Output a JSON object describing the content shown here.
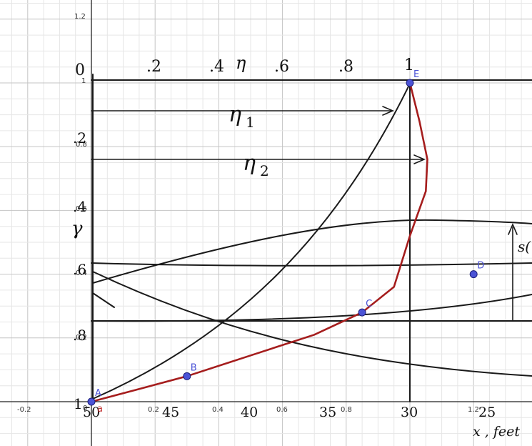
{
  "graph_axes": {
    "x_ticks": [
      "-0.2",
      "0.2",
      "0.4",
      "0.6",
      "0.8",
      "1.2"
    ],
    "y_ticks": [
      "0.2",
      "0.4",
      "0.6",
      "0.8",
      "1",
      "1.2"
    ],
    "origin_label": "0"
  },
  "sketch": {
    "eta_axis_ticks": [
      "0",
      ".2",
      ".4",
      "η",
      ".6",
      ".8",
      "1"
    ],
    "y_axis_ticks": [
      ".2",
      ".4",
      ".6",
      ".8",
      "1"
    ],
    "y_axis_symbol": "γ",
    "bottom_ticks": [
      "50",
      "45",
      "40",
      "35",
      "30",
      "25"
    ],
    "eta1_label": "η",
    "eta1_sub": "1",
    "eta2_label": "η",
    "eta2_sub": "2",
    "s_label": "s(",
    "x_axis_label": "x , feet"
  },
  "points": [
    {
      "name": "A",
      "x": 0,
      "y": 0
    },
    {
      "name": "B",
      "x": 0.3,
      "y": 0.08
    },
    {
      "name": "C",
      "x": 0.85,
      "y": 0.28
    },
    {
      "name": "D",
      "x": 1.2,
      "y": 0.4
    },
    {
      "name": "E",
      "x": 1,
      "y": 1
    }
  ],
  "red_point_label": "a"
}
